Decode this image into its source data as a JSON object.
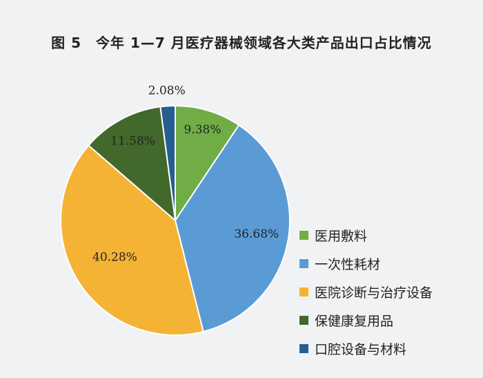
{
  "title": "图 5　今年 1—7 月医疗器械领域各大类产品出口占比情况",
  "chart_data": {
    "type": "pie",
    "title": "图 5　今年 1—7 月医疗器械领域各大类产品出口占比情况",
    "slices": [
      {
        "name": "医用敷料",
        "value": 9.38,
        "label": "9.38%",
        "color": "#70ad47"
      },
      {
        "name": "一次性耗材",
        "value": 36.68,
        "label": "36.68%",
        "color": "#5b9bd5"
      },
      {
        "name": "医院诊断与治疗设备",
        "value": 40.28,
        "label": "40.28%",
        "color": "#f5b336"
      },
      {
        "name": "保健康复用品",
        "value": 11.58,
        "label": "11.58%",
        "color": "#43682b"
      },
      {
        "name": "口腔设备与材料",
        "value": 2.08,
        "label": "2.08%",
        "color": "#255e91"
      }
    ],
    "start_angle": "12 o'clock",
    "direction": "clockwise",
    "legend_position": "right"
  }
}
